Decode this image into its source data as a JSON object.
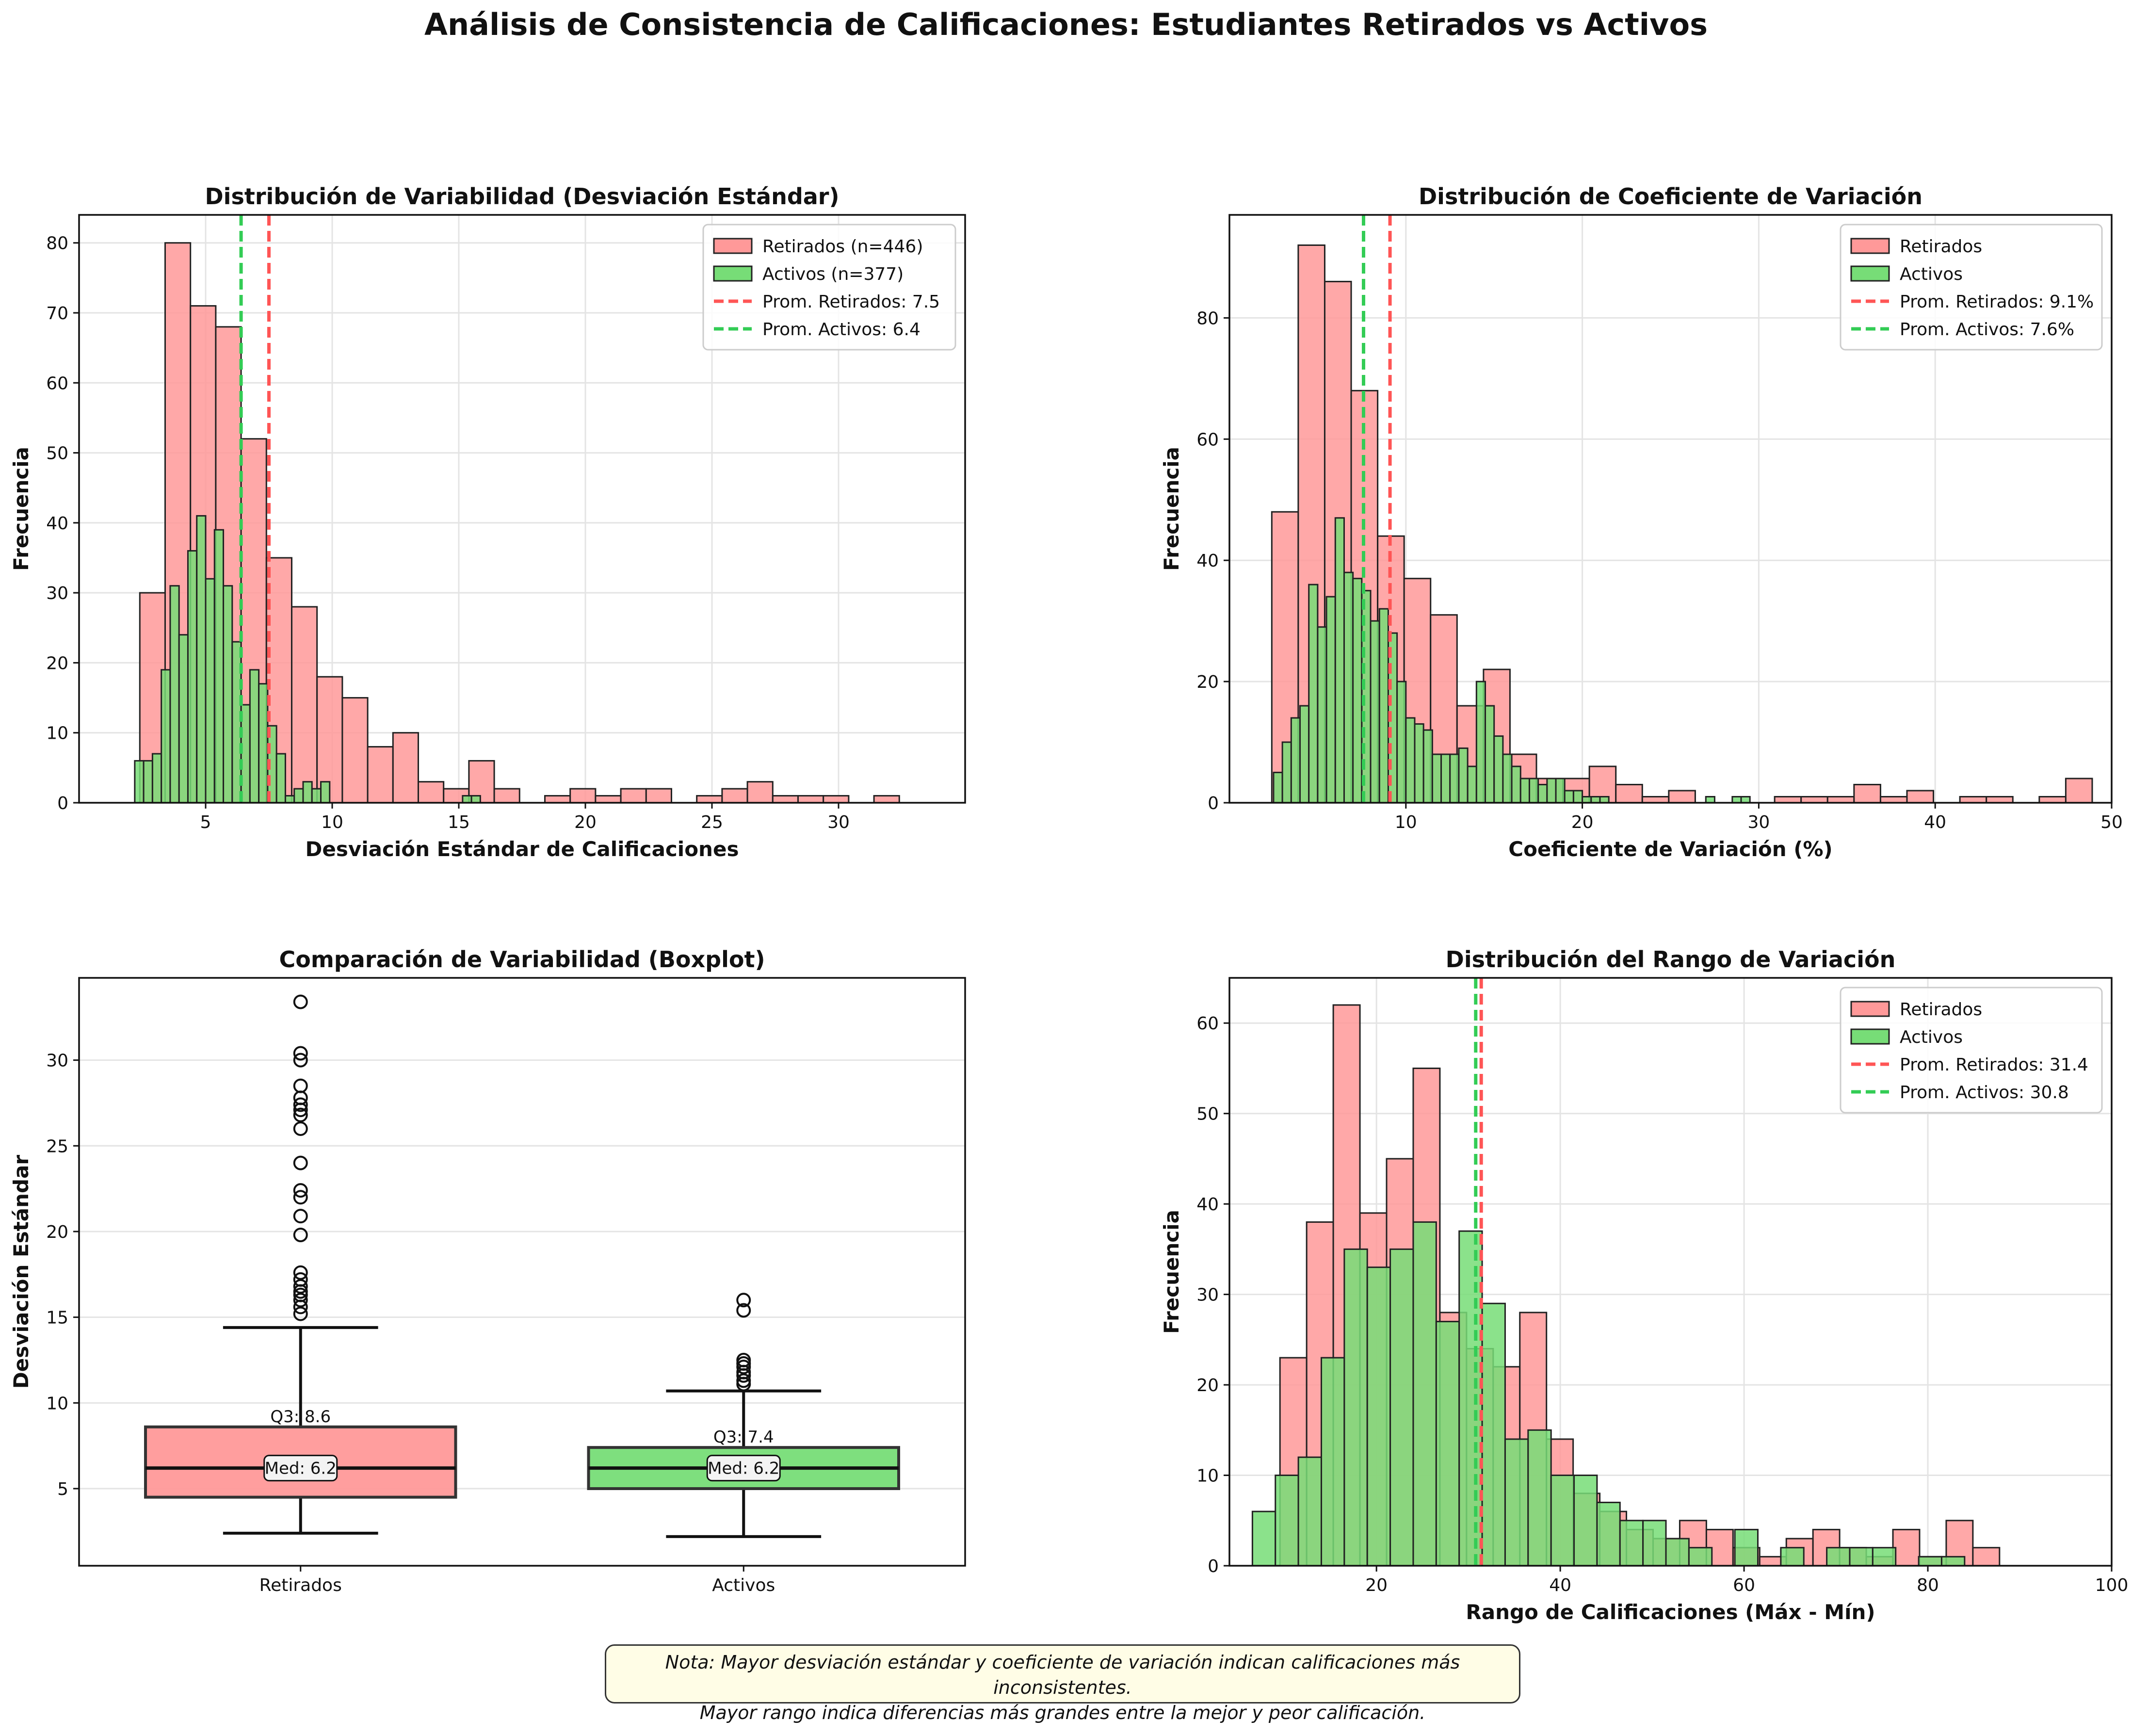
{
  "suptitle": "Análisis de Consistencia de Calificaciones: Estudiantes Retirados vs Activos",
  "note": {
    "line1": "Nota: Mayor desviación estándar y coeficiente de variación indican calificaciones más inconsistentes.",
    "line2": "Mayor rango indica diferencias más grandes entre la mejor y peor calificación."
  },
  "colors": {
    "retirados": "#ff9999",
    "activos": "#77dd77",
    "retirados_line": "#ff5555",
    "activos_line": "#33cc55"
  },
  "chart_data": [
    {
      "id": "std",
      "type": "bar",
      "title": "Distribución de Variabilidad (Desviación Estándar)",
      "xlabel": "Desviación Estándar de Calificaciones",
      "ylabel": "Frecuencia",
      "xlim": [
        0,
        35
      ],
      "ylim": [
        0,
        84
      ],
      "xticks": [
        5,
        10,
        15,
        20,
        25,
        30
      ],
      "yticks": [
        0,
        10,
        20,
        30,
        40,
        50,
        60,
        70,
        80
      ],
      "grid": true,
      "legend": "top-right",
      "series": [
        {
          "name": "Retirados (n=446)",
          "bin_start": 2.4,
          "bin_width": 1.0,
          "values": [
            30,
            80,
            71,
            68,
            52,
            35,
            28,
            18,
            15,
            8,
            10,
            3,
            2,
            6,
            2,
            0,
            1,
            2,
            1,
            2,
            2,
            0,
            1,
            2,
            3,
            1,
            1,
            1,
            0,
            1
          ]
        },
        {
          "name": "Activos (n=377)",
          "bin_start": 2.2,
          "bin_width": 0.35,
          "values": [
            6,
            6,
            7,
            19,
            31,
            24,
            36,
            41,
            32,
            39,
            31,
            23,
            14,
            19,
            17,
            11,
            7,
            1,
            2,
            3,
            2,
            3,
            0,
            0,
            0,
            0,
            0,
            0,
            0,
            0,
            0,
            0,
            0,
            0,
            0,
            0,
            0,
            1,
            1
          ]
        }
      ],
      "mean_lines": [
        {
          "name": "Prom. Retirados: 7.5",
          "x": 7.5
        },
        {
          "name": "Prom. Activos: 6.4",
          "x": 6.4
        }
      ]
    },
    {
      "id": "cv",
      "type": "bar",
      "title": "Distribución de Coeficiente de Variación",
      "xlabel": "Coeficiente de Variación (%)",
      "ylabel": "Frecuencia",
      "xlim": [
        0,
        50
      ],
      "ylim": [
        0,
        97
      ],
      "xticks": [
        10,
        20,
        30,
        40,
        50
      ],
      "yticks": [
        0,
        20,
        40,
        60,
        80
      ],
      "grid": true,
      "legend": "top-right",
      "series": [
        {
          "name": "Retirados",
          "bin_start": 2.4,
          "bin_width": 1.5,
          "values": [
            48,
            92,
            86,
            68,
            44,
            37,
            31,
            16,
            22,
            8,
            4,
            4,
            6,
            3,
            1,
            2,
            0,
            0,
            0,
            1,
            1,
            1,
            3,
            1,
            2,
            0,
            1,
            1,
            0,
            1,
            4
          ]
        },
        {
          "name": "Activos",
          "bin_start": 2.5,
          "bin_width": 0.5,
          "values": [
            5,
            10,
            14,
            16,
            36,
            29,
            34,
            47,
            38,
            37,
            35,
            30,
            32,
            28,
            20,
            14,
            13,
            12,
            8,
            8,
            8,
            9,
            6,
            20,
            16,
            11,
            8,
            6,
            4,
            4,
            3,
            4,
            4,
            2,
            2,
            1,
            1,
            1,
            0,
            0,
            0,
            0,
            0,
            0,
            0,
            0,
            0,
            0,
            0,
            1,
            0,
            0,
            1,
            1
          ]
        }
      ],
      "mean_lines": [
        {
          "name": "Prom. Retirados: 9.1%",
          "x": 9.1
        },
        {
          "name": "Prom. Activos: 7.6%",
          "x": 7.6
        }
      ]
    },
    {
      "id": "box",
      "type": "box",
      "title": "Comparación de Variabilidad (Boxplot)",
      "ylabel": "Desviación Estándar",
      "ylim": [
        0.5,
        34.8
      ],
      "yticks": [
        5,
        10,
        15,
        20,
        25,
        30
      ],
      "categories": [
        "Retirados",
        "Activos"
      ],
      "boxes": [
        {
          "name": "Retirados",
          "whisker_low": 2.4,
          "q1": 4.5,
          "median": 6.2,
          "q3": 8.6,
          "whisker_high": 14.4,
          "outliers": [
            15.2,
            15.6,
            16.0,
            16.3,
            16.5,
            16.8,
            17.2,
            17.6,
            19.8,
            20.9,
            22.0,
            22.4,
            24.0,
            26.0,
            26.8,
            27.1,
            27.4,
            27.8,
            28.5,
            30.0,
            30.4,
            33.4
          ],
          "median_label": "Med: 6.2",
          "q3_label": "Q3: 8.6"
        },
        {
          "name": "Activos",
          "whisker_low": 2.2,
          "q1": 5.0,
          "median": 6.2,
          "q3": 7.4,
          "whisker_high": 10.7,
          "outliers": [
            11.1,
            11.3,
            11.6,
            11.8,
            12.1,
            12.3,
            12.5,
            15.4,
            16.0
          ],
          "median_label": "Med: 6.2",
          "q3_label": "Q3: 7.4"
        }
      ],
      "grid": true
    },
    {
      "id": "range",
      "type": "bar",
      "title": "Distribución del Rango de Variación",
      "xlabel": "Rango de Calificaciones (Máx - Mín)",
      "ylabel": "Frecuencia",
      "xlim": [
        4,
        100
      ],
      "ylim": [
        0,
        65
      ],
      "xticks": [
        20,
        40,
        60,
        80,
        100
      ],
      "yticks": [
        0,
        10,
        20,
        30,
        40,
        50,
        60
      ],
      "grid": true,
      "legend": "top-right",
      "series": [
        {
          "name": "Retirados",
          "bin_start": 9.5,
          "bin_width": 2.9,
          "values": [
            23,
            38,
            62,
            39,
            45,
            55,
            28,
            24,
            22,
            28,
            14,
            8,
            6,
            4,
            3,
            5,
            4,
            2,
            1,
            3,
            4,
            2,
            1,
            4,
            1,
            5,
            2
          ]
        },
        {
          "name": "Activos",
          "bin_start": 6.5,
          "bin_width": 2.5,
          "values": [
            6,
            10,
            12,
            23,
            35,
            33,
            35,
            38,
            27,
            37,
            29,
            14,
            15,
            10,
            10,
            7,
            5,
            5,
            3,
            2,
            0,
            4,
            0,
            2,
            0,
            2,
            2,
            2,
            0,
            1,
            1
          ]
        }
      ],
      "mean_lines": [
        {
          "name": "Prom. Retirados: 31.4",
          "x": 31.4
        },
        {
          "name": "Prom. Activos: 30.8",
          "x": 30.8
        }
      ]
    }
  ]
}
